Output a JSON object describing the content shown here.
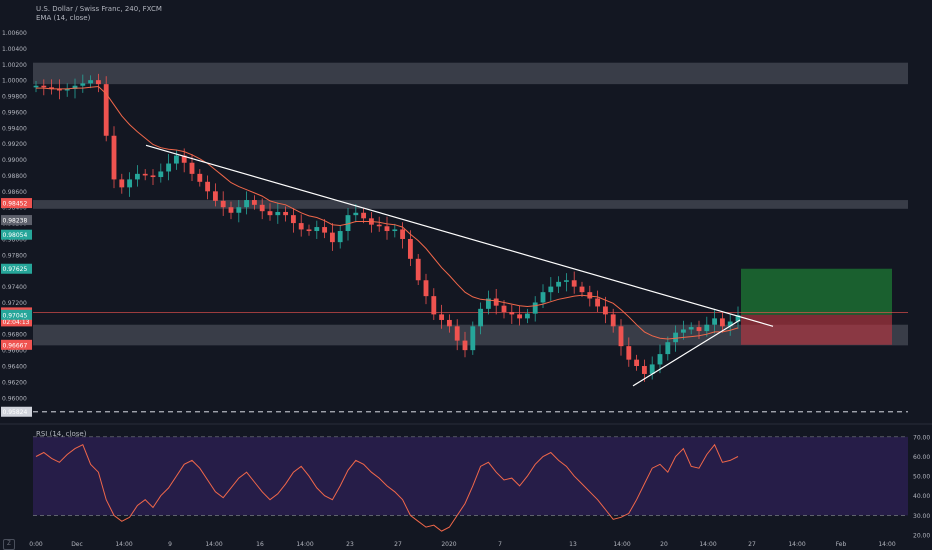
{
  "header": {
    "symbol": "U.S. Dollar / Swiss Franc, 240, FXCM",
    "ema_label": "EMA (14, close)",
    "rsi_label": "RSI (14, close)"
  },
  "branding": {
    "logo_text": "Z"
  },
  "colors": {
    "background": "#131722",
    "up": "#26a69a",
    "down": "#ef5350",
    "zone": "#787b86",
    "trendline": "#ffffff",
    "ema": "#f0674a",
    "rsi_line": "#f0674a",
    "rsi_band": "#2a1f4f",
    "tp_box": "#1e7a34",
    "sl_box": "#b53640",
    "axis_text": "#b2b5be"
  },
  "chart_data": [
    {
      "type": "candlestick",
      "title": "U.S. Dollar / Swiss Franc, 240, FXCM",
      "indicator": "EMA (14, close)",
      "y_range": [
        0.9572,
        1.0072
      ],
      "y_ticks": [
        "1.00600",
        "1.00400",
        "1.00200",
        "1.00000",
        "0.99800",
        "0.99600",
        "0.99400",
        "0.99200",
        "0.99000",
        "0.98800",
        "0.98600",
        "0.98400",
        "0.98200",
        "0.98000",
        "0.97800",
        "0.97600",
        "0.97400",
        "0.97200",
        "0.97000",
        "0.96800",
        "0.96600",
        "0.96400",
        "0.96200",
        "0.96000"
      ],
      "price_labels": [
        {
          "value": "0.98452",
          "color": "#ef5350"
        },
        {
          "value": "0.98238",
          "color": "#5d606b"
        },
        {
          "value": "0.98054",
          "color": "#26a69a"
        },
        {
          "value": "0.97625",
          "color": "#26a69a"
        },
        {
          "value": "0.97075",
          "color": "#ef5350"
        },
        {
          "value": "02:04:13",
          "color": "#ef5350"
        },
        {
          "value": "0.97045",
          "color": "#26a69a"
        },
        {
          "value": "0.96667",
          "color": "#ef5350"
        },
        {
          "value": "0.95824",
          "color": "#d1d4dc"
        }
      ],
      "x_ticks": [
        "0:00",
        "Dec",
        "14:00",
        "9",
        "14:00",
        "16",
        "14:00",
        "23",
        "27",
        "2020",
        "7",
        "13",
        "14:00",
        "20",
        "14:00",
        "27",
        "14:00",
        "Feb",
        "14:00"
      ],
      "zones": [
        {
          "from": 0.9995,
          "to": 1.0022
        },
        {
          "from": 0.9838,
          "to": 0.9849
        },
        {
          "from": 0.9666,
          "to": 0.9692
        }
      ],
      "trendlines": [
        {
          "from": [
            "9",
            0.9918
          ],
          "to": [
            "27",
            0.969
          ]
        },
        {
          "from": [
            "20",
            0.9615
          ],
          "to": [
            "27",
            0.9698
          ]
        }
      ],
      "horizontal_lines": [
        {
          "value": 0.95824,
          "style": "dashed"
        },
        {
          "value": 0.97075,
          "style": "solid"
        }
      ],
      "position": {
        "take_profit": 0.97625,
        "entry": 0.97045,
        "stop_loss": 0.96667
      },
      "series": [
        {
          "name": "price",
          "values": [
            0.9993,
            0.9991,
            0.9989,
            0.9987,
            0.9989,
            0.9993,
            0.9996,
            1.0,
            0.9995,
            0.993,
            0.9875,
            0.9865,
            0.9875,
            0.9882,
            0.988,
            0.9878,
            0.9885,
            0.9895,
            0.9905,
            0.9896,
            0.9882,
            0.9872,
            0.986,
            0.9848,
            0.984,
            0.9833,
            0.984,
            0.9849,
            0.9843,
            0.9835,
            0.983,
            0.9834,
            0.983,
            0.982,
            0.9812,
            0.981,
            0.9815,
            0.9808,
            0.9796,
            0.981,
            0.983,
            0.9833,
            0.9826,
            0.9818,
            0.9816,
            0.981,
            0.9812,
            0.98,
            0.9775,
            0.9748,
            0.9728,
            0.9705,
            0.9698,
            0.969,
            0.9672,
            0.966,
            0.969,
            0.9712,
            0.9725,
            0.9716,
            0.9708,
            0.9705,
            0.97,
            0.9706,
            0.972,
            0.9733,
            0.974,
            0.9746,
            0.9748,
            0.974,
            0.9733,
            0.9725,
            0.9715,
            0.9705,
            0.969,
            0.9665,
            0.9648,
            0.964,
            0.963,
            0.9642,
            0.9655,
            0.967,
            0.9682,
            0.9686,
            0.9689,
            0.9684,
            0.9692,
            0.97,
            0.969,
            0.9696,
            0.9704
          ]
        },
        {
          "name": "EMA (14, close)",
          "values": [
            0.999,
            0.999,
            0.9989,
            0.9989,
            0.9989,
            0.999,
            0.999,
            0.9991,
            0.9992,
            0.9983,
            0.9969,
            0.9955,
            0.9944,
            0.9935,
            0.9927,
            0.9919,
            0.9915,
            0.9913,
            0.9912,
            0.991,
            0.9906,
            0.9901,
            0.9895,
            0.9887,
            0.9879,
            0.9871,
            0.9866,
            0.9862,
            0.9858,
            0.9854,
            0.9848,
            0.9845,
            0.9843,
            0.9838,
            0.9833,
            0.9829,
            0.9827,
            0.9823,
            0.9818,
            0.9817,
            0.9819,
            0.9822,
            0.9822,
            0.9822,
            0.9821,
            0.9819,
            0.9818,
            0.9815,
            0.9806,
            0.9798,
            0.9788,
            0.9776,
            0.9764,
            0.9754,
            0.9743,
            0.9733,
            0.9727,
            0.9724,
            0.9723,
            0.9722,
            0.972,
            0.9718,
            0.9716,
            0.9715,
            0.9716,
            0.9718,
            0.9721,
            0.9724,
            0.9726,
            0.9728,
            0.9729,
            0.9728,
            0.9727,
            0.9723,
            0.9719,
            0.9711,
            0.9702,
            0.9692,
            0.9683,
            0.9678,
            0.9675,
            0.9674,
            0.9675,
            0.9676,
            0.9677,
            0.9678,
            0.968,
            0.9683,
            0.9683,
            0.9685,
            0.9688
          ]
        }
      ]
    },
    {
      "type": "line",
      "title": "RSI (14, close)",
      "y_range": [
        20,
        75
      ],
      "y_ticks": [
        "70.00",
        "60.00",
        "50.00",
        "40.00",
        "30.00",
        "20.00"
      ],
      "bands": [
        30,
        70
      ],
      "series": [
        {
          "name": "RSI (14, close)",
          "values": [
            60,
            62,
            59,
            57,
            61,
            64,
            66,
            56,
            52,
            38,
            30,
            27,
            29,
            35,
            38,
            34,
            40,
            44,
            50,
            56,
            58,
            54,
            48,
            42,
            39,
            44,
            49,
            52,
            47,
            42,
            38,
            41,
            46,
            52,
            55,
            50,
            44,
            40,
            38,
            45,
            53,
            58,
            56,
            52,
            49,
            45,
            42,
            38,
            30,
            27,
            24,
            25,
            22,
            24,
            30,
            36,
            45,
            55,
            57,
            52,
            48,
            49,
            45,
            50,
            56,
            60,
            62,
            58,
            55,
            50,
            46,
            42,
            38,
            33,
            28,
            29,
            31,
            38,
            46,
            54,
            56,
            52,
            60,
            64,
            55,
            54,
            61,
            66,
            57,
            58,
            60
          ]
        }
      ]
    }
  ]
}
